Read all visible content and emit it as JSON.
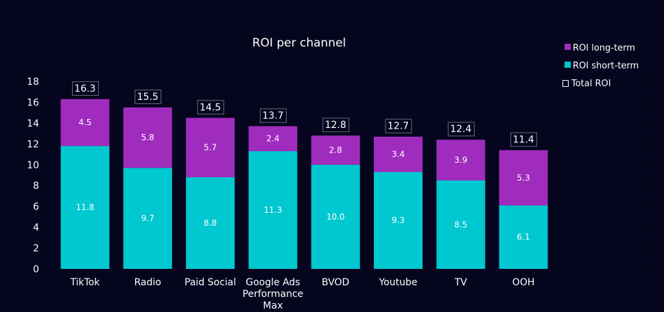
{
  "chart_data": {
    "type": "bar",
    "stacked": true,
    "title": "ROI per channel",
    "xlabel": "",
    "ylabel": "",
    "ylim": [
      0,
      18
    ],
    "yticks": [
      "0",
      "2",
      "4",
      "6",
      "8",
      "10",
      "12",
      "14",
      "16",
      "18"
    ],
    "y2ticks": [
      "0.0",
      "2.0",
      "4.0",
      "6.0",
      "8.0",
      "10.0",
      "12.0",
      "14.0",
      "16.0",
      "18.0"
    ],
    "grid": false,
    "legend_position": "top-right",
    "categories": [
      [
        "TikTok"
      ],
      [
        "Radio"
      ],
      [
        "Paid Social"
      ],
      [
        "Google Ads",
        "Performance",
        "Max"
      ],
      [
        "BVOD"
      ],
      [
        "Youtube"
      ],
      [
        "TV"
      ],
      [
        "OOH"
      ]
    ],
    "series": [
      {
        "name": "ROI short-term",
        "color": "#00c8d0",
        "values": [
          11.8,
          9.7,
          8.8,
          11.3,
          10.0,
          9.3,
          8.5,
          6.1
        ],
        "labels": [
          "11.8",
          "9.7",
          "8.8",
          "11.3",
          "10.0",
          "9.3",
          "8.5",
          "6.1"
        ]
      },
      {
        "name": "ROI long-term",
        "color": "#a02cbe",
        "values": [
          4.5,
          5.8,
          5.7,
          2.4,
          2.8,
          3.4,
          3.9,
          5.3
        ],
        "labels": [
          "4.5",
          "5.8",
          "5.7",
          "2.4",
          "2.8",
          "3.4",
          "3.9",
          "5.3"
        ]
      }
    ],
    "totals": {
      "name": "Total ROI",
      "values": [
        16.3,
        15.5,
        14.5,
        13.7,
        12.8,
        12.7,
        12.4,
        11.4
      ],
      "labels": [
        "16.3",
        "15.5",
        "14.5",
        "13.7",
        "12.8",
        "12.7",
        "12.4",
        "11.4"
      ]
    },
    "legend": [
      "ROI long-term",
      "ROI short-term",
      "Total ROI"
    ]
  }
}
